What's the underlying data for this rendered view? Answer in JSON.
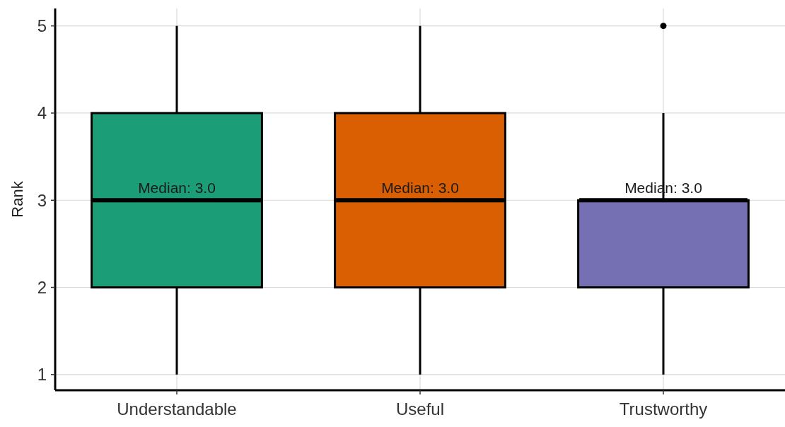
{
  "chart_data": {
    "type": "box",
    "ylabel": "Rank",
    "categories": [
      "Understandable",
      "Useful",
      "Trustworthy"
    ],
    "boxes": [
      {
        "low": 1,
        "q1": 2,
        "median": 3,
        "q3": 4,
        "high": 5
      },
      {
        "low": 1,
        "q1": 2,
        "median": 3,
        "q3": 4,
        "high": 5
      },
      {
        "low": 1,
        "q1": 2,
        "median": 3,
        "q3": 3,
        "high": 4,
        "outliers": [
          5
        ]
      }
    ],
    "colors": [
      "#1b9e77",
      "#d95f02",
      "#7570b3"
    ],
    "ylim": [
      0.82,
      5.2
    ],
    "yticks": [
      1,
      2,
      3,
      4,
      5
    ],
    "grid": true,
    "annotations": [
      {
        "text": "Median: 3.0",
        "x": "Understandable",
        "y": 3
      },
      {
        "text": "Median: 3.0",
        "x": "Useful",
        "y": 3
      },
      {
        "text": "Median: 3.0",
        "x": "Trustworthy",
        "y": 3
      }
    ]
  }
}
